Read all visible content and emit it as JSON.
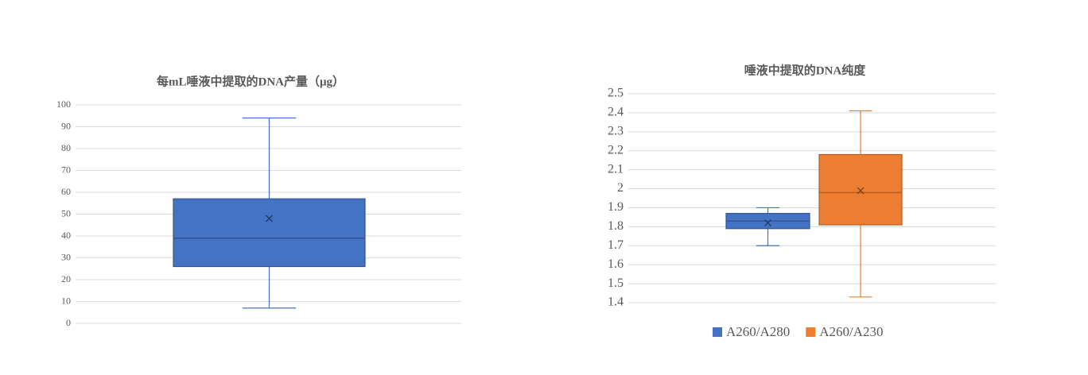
{
  "chart_data": [
    {
      "type": "box",
      "title": "每mL唾液中提取的DNA产量（μg）",
      "ylim": [
        0,
        100
      ],
      "yticks": [
        0,
        10,
        20,
        30,
        40,
        50,
        60,
        70,
        80,
        90,
        100
      ],
      "grid": true,
      "series": [
        {
          "color": "#4472c4",
          "min": 7,
          "q1": 26,
          "median": 39,
          "q3": 57,
          "max": 94,
          "mean": 48
        }
      ]
    },
    {
      "type": "box",
      "title": "唾液中提取的DNA纯度",
      "ylim": [
        1.4,
        2.5
      ],
      "yticks": [
        1.4,
        1.5,
        1.6,
        1.7,
        1.8,
        1.9,
        2,
        2.1,
        2.2,
        2.3,
        2.4,
        2.5
      ],
      "grid": true,
      "legend": "bottom",
      "series": [
        {
          "name": "A260/A280",
          "color": "#4472c4",
          "min": 1.7,
          "q1": 1.79,
          "median": 1.83,
          "q3": 1.87,
          "max": 1.9,
          "mean": 1.82
        },
        {
          "name": "A260/A230",
          "color": "#ed7d31",
          "min": 1.43,
          "q1": 1.81,
          "median": 1.98,
          "q3": 2.18,
          "max": 2.41,
          "mean": 1.99
        }
      ]
    }
  ]
}
